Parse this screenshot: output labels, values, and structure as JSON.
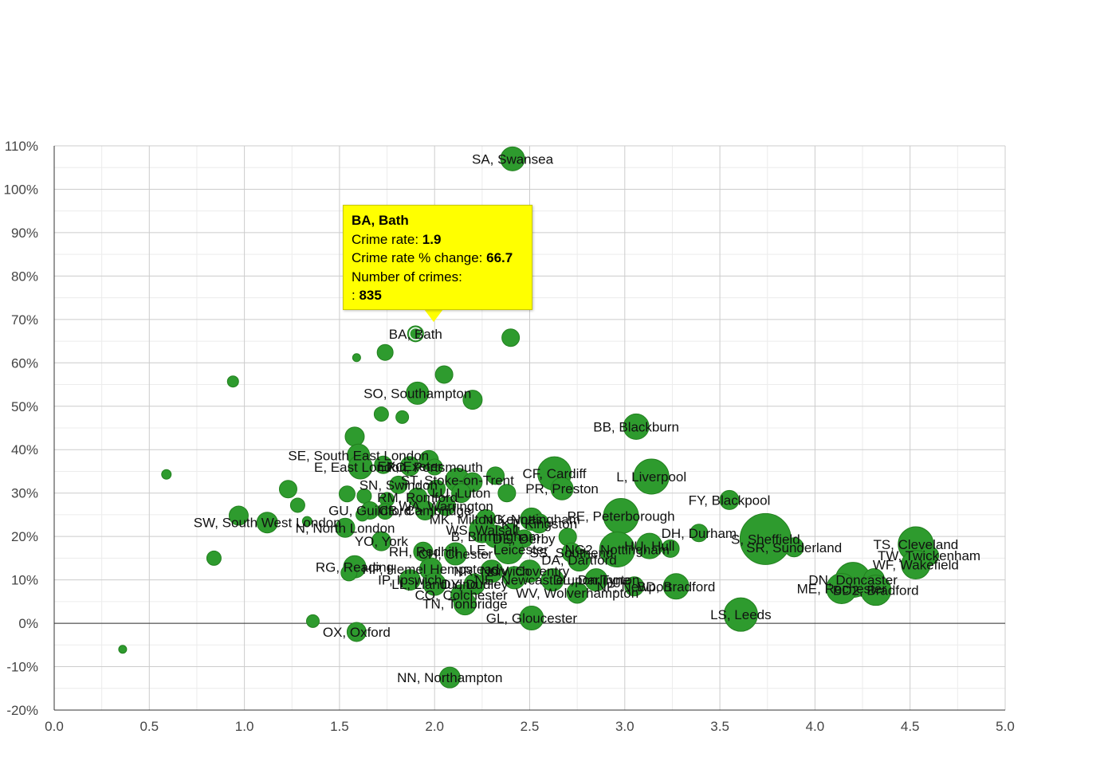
{
  "colors": {
    "bubble": "#2e9b2e",
    "bubble_stroke": "#22801f",
    "highlight_stroke": "#ffffff",
    "grid_major": "#cccccc",
    "grid_minor": "#ececec",
    "axis": "#333333",
    "tooltip_bg": "#ffff00"
  },
  "chart_data": {
    "type": "scatter",
    "title": "",
    "xlabel": "",
    "ylabel": "",
    "xlim": [
      0,
      5
    ],
    "ylim": [
      -20,
      110
    ],
    "x_ticks": [
      0.0,
      0.5,
      1.0,
      1.5,
      2.0,
      2.5,
      3.0,
      3.5,
      4.0,
      4.5,
      5.0
    ],
    "x_tick_labels": [
      "0.0",
      "0.5",
      "1.0",
      "1.5",
      "2.0",
      "2.5",
      "3.0",
      "3.5",
      "4.0",
      "4.5",
      "5.0"
    ],
    "y_ticks": [
      -20,
      -10,
      0,
      10,
      20,
      30,
      40,
      50,
      60,
      70,
      80,
      90,
      100,
      110
    ],
    "y_tick_labels": [
      "-20%",
      "-10%",
      "0%",
      "10%",
      "20%",
      "30%",
      "40%",
      "50%",
      "60%",
      "70%",
      "80%",
      "90%",
      "100%",
      "110%"
    ],
    "grid": true,
    "points": [
      {
        "x": 2.41,
        "y": 107,
        "size": 15,
        "label": "SA, Swansea"
      },
      {
        "x": 1.9,
        "y": 66.7,
        "size": 10,
        "label": "BA, Bath",
        "highlighted": true
      },
      {
        "x": 2.4,
        "y": 65.8,
        "size": 11,
        "label": ""
      },
      {
        "x": 1.59,
        "y": 61.2,
        "size": 5,
        "label": ""
      },
      {
        "x": 1.74,
        "y": 62.4,
        "size": 10,
        "label": ""
      },
      {
        "x": 0.94,
        "y": 55.7,
        "size": 7,
        "label": ""
      },
      {
        "x": 2.05,
        "y": 57.3,
        "size": 11,
        "label": ""
      },
      {
        "x": 1.91,
        "y": 53.0,
        "size": 14,
        "label": "SO, Southampton"
      },
      {
        "x": 2.2,
        "y": 51.5,
        "size": 12,
        "label": ""
      },
      {
        "x": 1.72,
        "y": 48.2,
        "size": 9,
        "label": ""
      },
      {
        "x": 1.83,
        "y": 47.5,
        "size": 8,
        "label": ""
      },
      {
        "x": 3.06,
        "y": 45.3,
        "size": 16,
        "label": "BB, Blackburn"
      },
      {
        "x": 1.58,
        "y": 43.0,
        "size": 12,
        "label": ""
      },
      {
        "x": 0.59,
        "y": 34.3,
        "size": 6,
        "label": ""
      },
      {
        "x": 1.97,
        "y": 37.6,
        "size": 12,
        "label": ""
      },
      {
        "x": 1.6,
        "y": 38.7,
        "size": 14,
        "label": "SE, South East London"
      },
      {
        "x": 1.61,
        "y": 36.0,
        "size": 15,
        "label": "E, East London"
      },
      {
        "x": 1.73,
        "y": 36.5,
        "size": 11,
        "label": ""
      },
      {
        "x": 1.87,
        "y": 36.2,
        "size": 12,
        "label": "EX, Exeter"
      },
      {
        "x": 2.0,
        "y": 36.0,
        "size": 10,
        "label": "PO, Portsmouth"
      },
      {
        "x": 2.63,
        "y": 34.5,
        "size": 21,
        "label": "CF, Cardiff"
      },
      {
        "x": 3.14,
        "y": 33.8,
        "size": 22,
        "label": "L, Liverpool"
      },
      {
        "x": 2.32,
        "y": 34.0,
        "size": 11,
        "label": ""
      },
      {
        "x": 2.12,
        "y": 33.0,
        "size": 15,
        "label": "ST, Stoke-on-Trent"
      },
      {
        "x": 2.2,
        "y": 32.5,
        "size": 12,
        "label": ""
      },
      {
        "x": 1.81,
        "y": 31.9,
        "size": 11,
        "label": "SN, Swindon"
      },
      {
        "x": 2.01,
        "y": 31.0,
        "size": 11,
        "label": ""
      },
      {
        "x": 2.14,
        "y": 30.0,
        "size": 12,
        "label": "LU, Luton"
      },
      {
        "x": 2.38,
        "y": 30.0,
        "size": 11,
        "label": ""
      },
      {
        "x": 1.23,
        "y": 30.9,
        "size": 11,
        "label": ""
      },
      {
        "x": 1.54,
        "y": 29.8,
        "size": 10,
        "label": ""
      },
      {
        "x": 1.63,
        "y": 29.3,
        "size": 9,
        "label": ""
      },
      {
        "x": 2.67,
        "y": 31.0,
        "size": 14,
        "label": "PR, Preston"
      },
      {
        "x": 3.55,
        "y": 28.4,
        "size": 12,
        "label": "FY, Blackpool"
      },
      {
        "x": 1.75,
        "y": 28.5,
        "size": 9,
        "label": ""
      },
      {
        "x": 1.91,
        "y": 29.0,
        "size": 12,
        "label": "RM, Romford"
      },
      {
        "x": 1.28,
        "y": 27.2,
        "size": 9,
        "label": ""
      },
      {
        "x": 2.06,
        "y": 27.0,
        "size": 12,
        "label": "WA, Warrington"
      },
      {
        "x": 1.66,
        "y": 26.0,
        "size": 11,
        "label": "GU, Guildford"
      },
      {
        "x": 1.74,
        "y": 25.8,
        "size": 10,
        "label": ""
      },
      {
        "x": 1.95,
        "y": 26.0,
        "size": 12,
        "label": "CB, Cambridge"
      },
      {
        "x": 1.62,
        "y": 25.0,
        "size": 8,
        "label": ""
      },
      {
        "x": 0.97,
        "y": 24.8,
        "size": 12,
        "label": ""
      },
      {
        "x": 2.51,
        "y": 24.0,
        "size": 14,
        "label": "NG, Nottingham"
      },
      {
        "x": 2.27,
        "y": 24.0,
        "size": 12,
        "label": "MK, Milton Keynes"
      },
      {
        "x": 2.55,
        "y": 23.0,
        "size": 12,
        "label": "KT, Kingston"
      },
      {
        "x": 2.98,
        "y": 24.7,
        "size": 22,
        "label": "PE, Peterborough"
      },
      {
        "x": 1.12,
        "y": 23.2,
        "size": 13,
        "label": "SW, South West London"
      },
      {
        "x": 1.33,
        "y": 23.5,
        "size": 6,
        "label": ""
      },
      {
        "x": 1.53,
        "y": 22.0,
        "size": 12,
        "label": "N, North London"
      },
      {
        "x": 2.25,
        "y": 21.5,
        "size": 16,
        "label": "WS, Walsall"
      },
      {
        "x": 2.4,
        "y": 21.0,
        "size": 11,
        "label": ""
      },
      {
        "x": 2.32,
        "y": 20.0,
        "size": 14,
        "label": "B, Birmingham"
      },
      {
        "x": 2.47,
        "y": 19.5,
        "size": 11,
        "label": "DE, Derby"
      },
      {
        "x": 2.7,
        "y": 19.9,
        "size": 11,
        "label": ""
      },
      {
        "x": 3.39,
        "y": 20.8,
        "size": 11,
        "label": "DH, Durham"
      },
      {
        "x": 1.72,
        "y": 18.9,
        "size": 12,
        "label": "YO, York"
      },
      {
        "x": 3.74,
        "y": 19.4,
        "size": 32,
        "label": "S, Sheffield"
      },
      {
        "x": 2.96,
        "y": 17.0,
        "size": 22,
        "label": "NG2, Nottingham"
      },
      {
        "x": 3.13,
        "y": 17.8,
        "size": 16,
        "label": "HU, Hull"
      },
      {
        "x": 3.24,
        "y": 17.2,
        "size": 11,
        "label": ""
      },
      {
        "x": 3.89,
        "y": 17.5,
        "size": 12,
        "label": "SR, Sunderland"
      },
      {
        "x": 2.39,
        "y": 17.0,
        "size": 18,
        "label": "LE, Leicester"
      },
      {
        "x": 1.94,
        "y": 16.5,
        "size": 12,
        "label": "RH, Redhill"
      },
      {
        "x": 2.11,
        "y": 16.0,
        "size": 14,
        "label": "CH, Chester"
      },
      {
        "x": 2.72,
        "y": 16.3,
        "size": 12,
        "label": "SS, Southend"
      },
      {
        "x": 0.84,
        "y": 15.0,
        "size": 9,
        "label": ""
      },
      {
        "x": 2.76,
        "y": 14.6,
        "size": 14,
        "label": "DA, Dartford"
      },
      {
        "x": 4.53,
        "y": 18.2,
        "size": 22,
        "label": "TS, Cleveland"
      },
      {
        "x": 4.6,
        "y": 15.6,
        "size": 12,
        "label": "TW, Twickenham"
      },
      {
        "x": 4.53,
        "y": 13.5,
        "size": 18,
        "label": "WF, Wakefield"
      },
      {
        "x": 1.58,
        "y": 13.0,
        "size": 14,
        "label": "RG, Reading"
      },
      {
        "x": 1.98,
        "y": 12.5,
        "size": 14,
        "label": "HP, Hemel Hempstead"
      },
      {
        "x": 1.55,
        "y": 11.6,
        "size": 10,
        "label": ""
      },
      {
        "x": 2.3,
        "y": 12.0,
        "size": 14,
        "label": "NR, Norwich"
      },
      {
        "x": 2.5,
        "y": 12.0,
        "size": 14,
        "label": "CV, Coventry"
      },
      {
        "x": 2.42,
        "y": 10.5,
        "size": 14,
        "label": ""
      },
      {
        "x": 2.62,
        "y": 10.0,
        "size": 14,
        "label": "NE, Newcastle upon Tyne"
      },
      {
        "x": 2.85,
        "y": 10.0,
        "size": 14,
        "label": "DL, Darlington"
      },
      {
        "x": 1.87,
        "y": 10.0,
        "size": 13,
        "label": "IP, Ipswich"
      },
      {
        "x": 2.0,
        "y": 9.0,
        "size": 14,
        "label": "LL, Llandudno"
      },
      {
        "x": 2.21,
        "y": 9.0,
        "size": 13,
        "label": "DY, Dudley"
      },
      {
        "x": 3.05,
        "y": 8.5,
        "size": 12,
        "label": "NP, Newport"
      },
      {
        "x": 3.27,
        "y": 8.5,
        "size": 16,
        "label": "BD, Bradford"
      },
      {
        "x": 4.2,
        "y": 10.0,
        "size": 22,
        "label": "DN, Doncaster"
      },
      {
        "x": 4.31,
        "y": 10.2,
        "size": 13,
        "label": ""
      },
      {
        "x": 4.14,
        "y": 8.0,
        "size": 19,
        "label": "ME, Rochester"
      },
      {
        "x": 4.32,
        "y": 7.6,
        "size": 19,
        "label": "BD2, Bradford"
      },
      {
        "x": 2.14,
        "y": 6.5,
        "size": 13,
        "label": "CO, Colchester"
      },
      {
        "x": 2.75,
        "y": 7.0,
        "size": 13,
        "label": "WV, Wolverhampton"
      },
      {
        "x": 2.16,
        "y": 4.5,
        "size": 14,
        "label": "TN, Tonbridge"
      },
      {
        "x": 3.61,
        "y": 2.0,
        "size": 21,
        "label": "LS, Leeds"
      },
      {
        "x": 2.51,
        "y": 1.2,
        "size": 15,
        "label": "GL, Gloucester"
      },
      {
        "x": 1.36,
        "y": 0.5,
        "size": 8,
        "label": ""
      },
      {
        "x": 1.59,
        "y": -2.0,
        "size": 12,
        "label": "OX, Oxford"
      },
      {
        "x": 0.36,
        "y": -6.0,
        "size": 5,
        "label": ""
      },
      {
        "x": 2.08,
        "y": -12.5,
        "size": 13,
        "label": "NN, Northampton"
      }
    ]
  },
  "tooltip": {
    "title": "BA, Bath",
    "rate_label": "Crime rate: ",
    "rate_value": "1.9",
    "change_label": "Crime rate % change: ",
    "change_value": "66.7",
    "count_label": "Number of crimes:",
    "count_prefix": ": ",
    "count_value": "835"
  }
}
